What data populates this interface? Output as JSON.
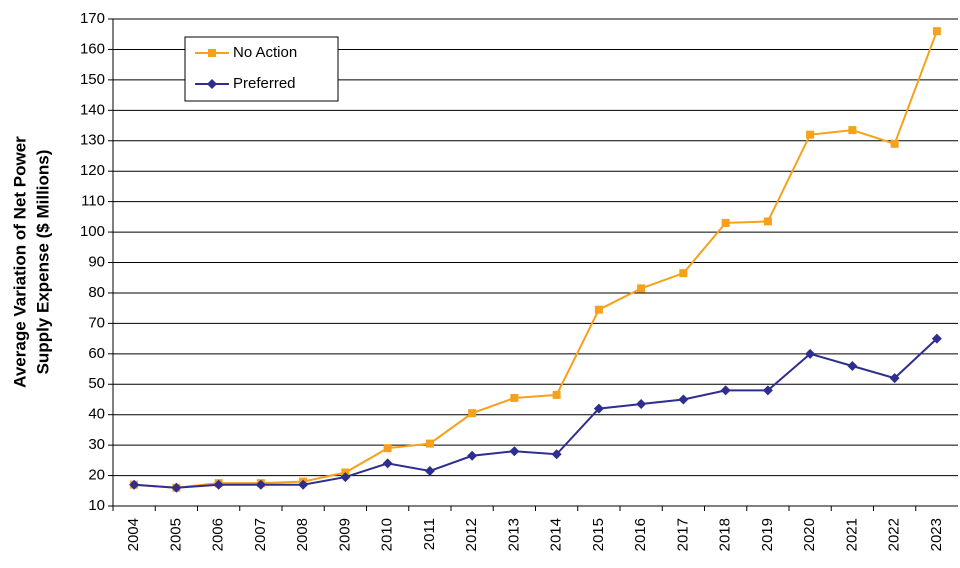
{
  "chart_data": {
    "type": "line",
    "ylabel": [
      "Average Variation of Net Power",
      "Supply Expense ($ Millions)"
    ],
    "categories": [
      "2004",
      "2005",
      "2006",
      "2007",
      "2008",
      "2009",
      "2010",
      "2011",
      "2012",
      "2013",
      "2014",
      "2015",
      "2016",
      "2017",
      "2018",
      "2019",
      "2020",
      "2021",
      "2022",
      "2023"
    ],
    "series": [
      {
        "name": "No Action",
        "color": "#f5a11c",
        "marker": "square",
        "values": [
          17,
          16,
          17.5,
          17.5,
          18,
          21,
          29,
          30.5,
          40.5,
          45.5,
          46.5,
          74.5,
          81.5,
          86.5,
          103,
          103.5,
          132,
          133.5,
          129,
          166
        ]
      },
      {
        "name": "Preferred",
        "color": "#2e2e8f",
        "marker": "diamond",
        "values": [
          17,
          16,
          17,
          17,
          17,
          19.5,
          24,
          21.5,
          26.5,
          28,
          27,
          42,
          43.5,
          45,
          48,
          48,
          60,
          56,
          52,
          65
        ]
      }
    ],
    "ylim": [
      10,
      170
    ],
    "yticks": [
      10,
      20,
      30,
      40,
      50,
      60,
      70,
      80,
      90,
      100,
      110,
      120,
      130,
      140,
      150,
      160,
      170
    ],
    "grid": true,
    "legend": "top-left"
  }
}
